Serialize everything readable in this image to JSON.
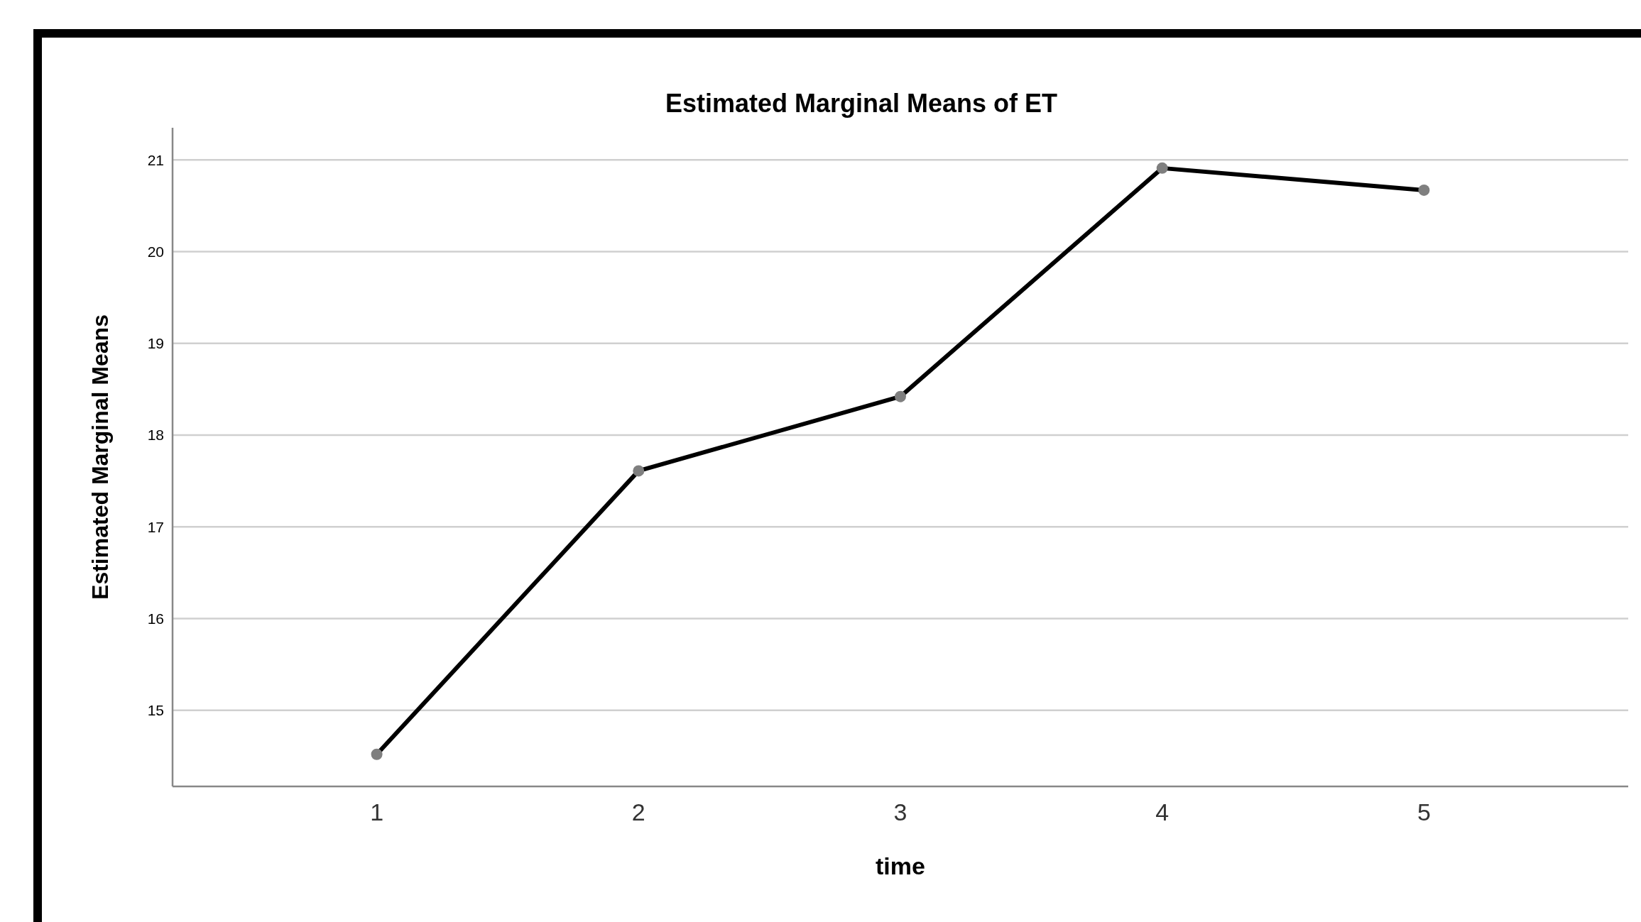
{
  "chart_data": {
    "type": "line",
    "title": "Estimated Marginal Means of ET",
    "xlabel": "time",
    "ylabel": "Estimated Marginal Means",
    "categories": [
      "1",
      "2",
      "3",
      "4",
      "5"
    ],
    "series": [
      {
        "color": "#000000",
        "values": [
          14.52,
          17.61,
          18.42,
          20.91,
          20.67
        ]
      }
    ],
    "ylim": [
      14.17,
      21.35
    ],
    "yticks": [
      15,
      16,
      17,
      18,
      19,
      20,
      21
    ],
    "grid": "y",
    "marker": "circle",
    "line_style": "solid"
  }
}
